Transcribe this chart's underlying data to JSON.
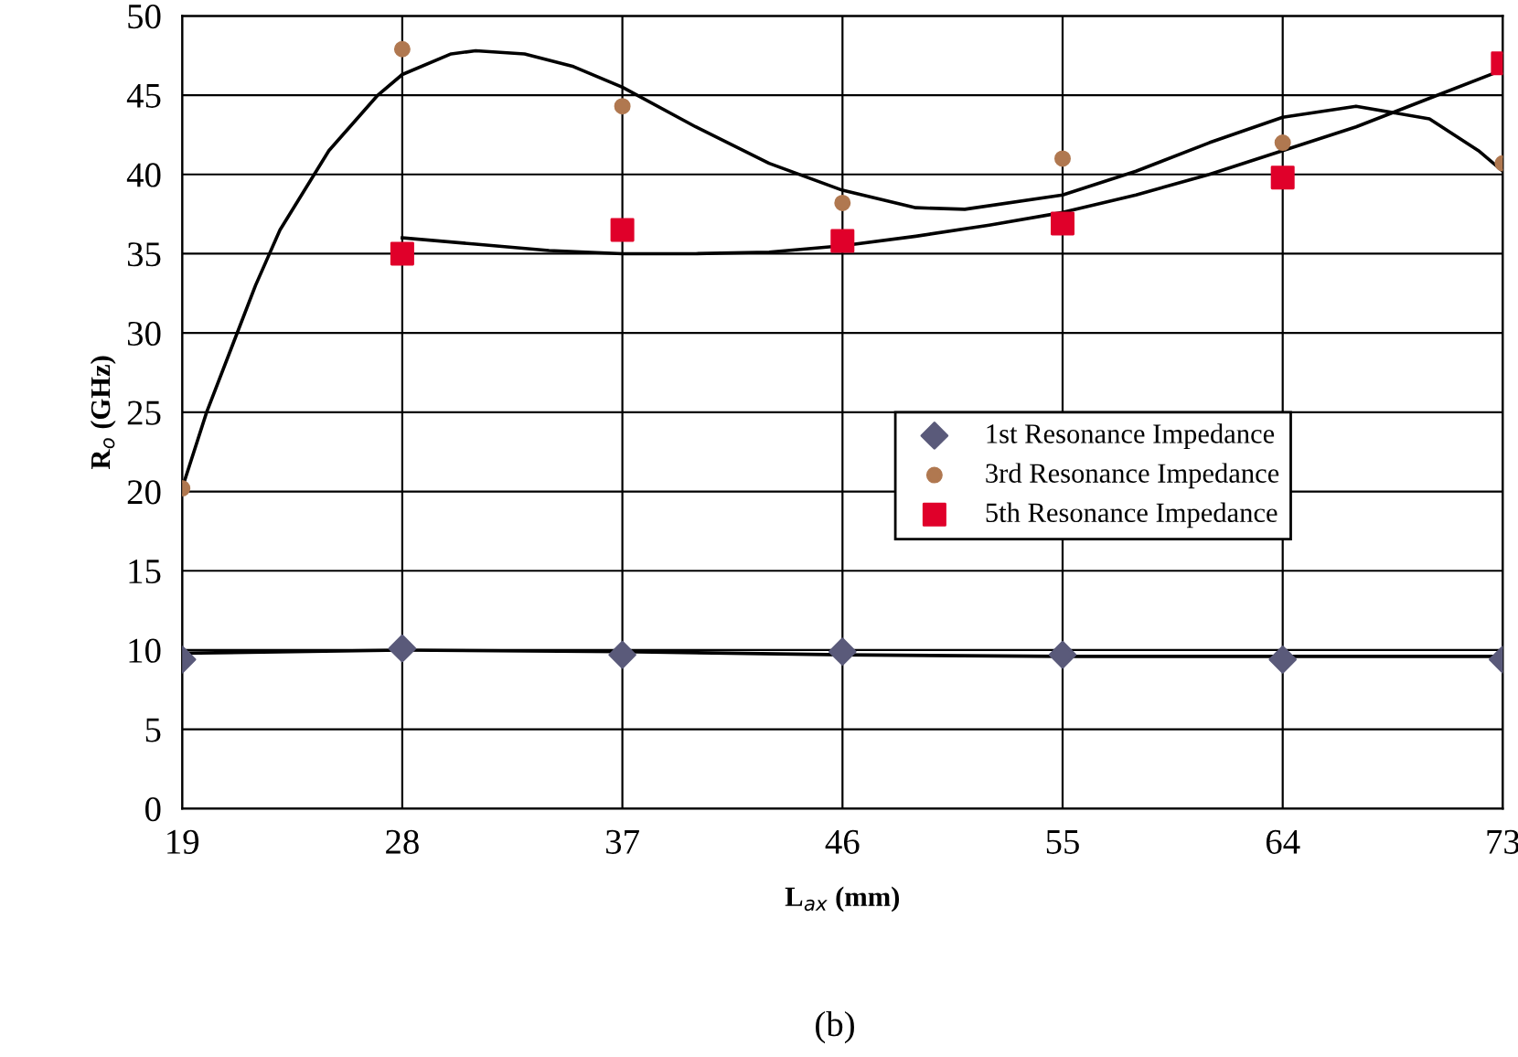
{
  "chart_data": {
    "type": "scatter",
    "xlabel": "L$_{ax}$ (mm)",
    "ylabel": "R$_{o}$ (GHz)",
    "annotations": [
      "(b)"
    ],
    "xlim": [
      19,
      73
    ],
    "xticks": [
      19,
      28,
      37,
      46,
      55,
      64,
      73
    ],
    "ylim": [
      0,
      50
    ],
    "yticks": [
      0,
      5,
      10,
      15,
      20,
      25,
      30,
      35,
      40,
      45,
      50
    ],
    "grid": true,
    "legend": "right",
    "x": [
      19,
      28,
      37,
      46,
      55,
      64,
      73
    ],
    "series": [
      {
        "name": "1st Resonance Impedance",
        "color": "#5a5a7a",
        "marker": "diamond",
        "values": [
          9.4,
          10.1,
          9.7,
          9.9,
          9.7,
          9.4,
          9.4
        ]
      },
      {
        "name": "3rd Resonance Impedance",
        "color": "#b07850",
        "marker": "circle",
        "values": [
          20.2,
          47.9,
          44.3,
          38.2,
          41.0,
          42.0,
          40.7
        ]
      },
      {
        "name": "5th Resonance Impedance",
        "color": "#e0002a",
        "marker": "square",
        "values": [
          null,
          35.0,
          36.5,
          35.8,
          36.9,
          39.8,
          47.0
        ]
      },
      {
        "type": "line",
        "color": "#000000",
        "marker": "none",
        "x": [
          19,
          28,
          37,
          46,
          55,
          64,
          73
        ],
        "values": [
          9.8,
          10.0,
          9.9,
          9.7,
          9.6,
          9.6,
          9.6
        ]
      },
      {
        "type": "line",
        "color": "#000000",
        "marker": "none",
        "x": [
          19,
          20,
          21,
          22,
          23,
          25,
          27,
          28,
          30,
          31,
          33,
          35,
          37,
          40,
          43,
          46,
          49,
          51,
          55,
          58,
          61,
          64,
          67,
          70,
          72,
          73
        ],
        "values": [
          20.2,
          25,
          29,
          33,
          36.5,
          41.5,
          45,
          46.3,
          47.6,
          47.8,
          47.6,
          46.8,
          45.5,
          43,
          40.7,
          39,
          37.9,
          37.8,
          38.7,
          40.2,
          42,
          43.6,
          44.3,
          43.5,
          41.5,
          40.2
        ]
      },
      {
        "type": "line",
        "color": "#000000",
        "marker": "none",
        "x": [
          28,
          31,
          34,
          37,
          40,
          43,
          46,
          49,
          52,
          55,
          58,
          61,
          64,
          67,
          70,
          73
        ],
        "values": [
          36,
          35.6,
          35.2,
          35,
          35,
          35.1,
          35.5,
          36.1,
          36.8,
          37.6,
          38.7,
          40,
          41.5,
          43,
          44.8,
          46.6
        ]
      }
    ]
  }
}
